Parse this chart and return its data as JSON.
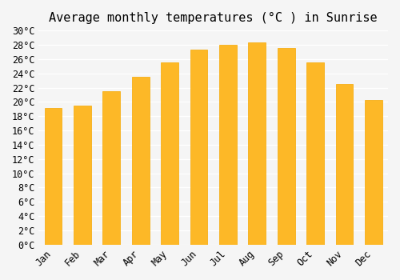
{
  "title": "Average monthly temperatures (°C ) in Sunrise",
  "months": [
    "Jan",
    "Feb",
    "Mar",
    "Apr",
    "May",
    "Jun",
    "Jul",
    "Aug",
    "Sep",
    "Oct",
    "Nov",
    "Dec"
  ],
  "values": [
    19.2,
    19.5,
    21.5,
    23.5,
    25.5,
    27.3,
    28.0,
    28.3,
    27.5,
    25.5,
    22.5,
    20.3
  ],
  "bar_color_face": "#FDB827",
  "bar_color_edge": "#F5A800",
  "ylim": [
    0,
    30
  ],
  "ytick_step": 2,
  "background_color": "#f5f5f5",
  "grid_color": "#ffffff",
  "title_fontsize": 11,
  "tick_fontsize": 8.5,
  "bar_width": 0.6
}
